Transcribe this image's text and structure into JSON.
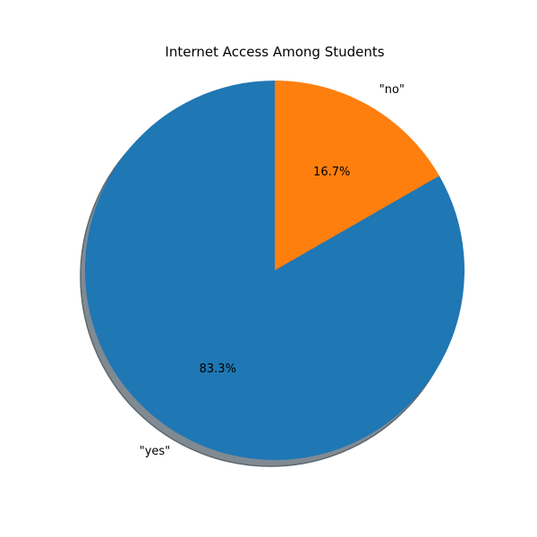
{
  "chart_data": {
    "type": "pie",
    "title": "Internet Access Among Students",
    "categories": [
      "\"yes\"",
      "\"no\""
    ],
    "values": [
      83.3,
      16.7
    ],
    "percent_labels": [
      "83.3%",
      "16.7%"
    ],
    "colors": [
      "#1f77b4",
      "#ff7f0e"
    ],
    "shadow": true,
    "start_angle_deg": 90,
    "direction": "counterclockwise"
  }
}
